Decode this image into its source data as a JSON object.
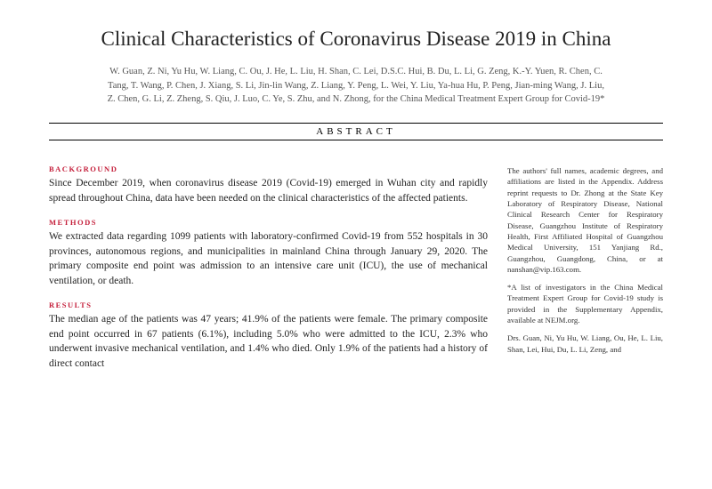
{
  "title": "Clinical Characteristics of Coronavirus Disease 2019 in China",
  "authors": "W. Guan, Z. Ni, Yu Hu, W. Liang, C. Ou, J. He, L. Liu, H. Shan, C. Lei, D.S.C. Hui, B. Du, L. Li, G. Zeng, K.-Y. Yuen, R. Chen, C. Tang, T. Wang, P. Chen, J. Xiang, S. Li, Jin-lin Wang, Z. Liang, Y. Peng, L. Wei, Y. Liu, Ya-hua Hu, P. Peng, Jian-ming Wang, J. Liu, Z. Chen, G. Li, Z. Zheng, S. Qiu, J. Luo, C. Ye, S. Zhu, and N. Zhong, for the China Medical Treatment Expert Group for Covid-19*",
  "abstract_label": "ABSTRACT",
  "sections": {
    "background": {
      "label": "BACKGROUND",
      "text": "Since December 2019, when coronavirus disease 2019 (Covid-19) emerged in Wuhan city and rapidly spread throughout China, data have been needed on the clinical characteristics of the affected patients."
    },
    "methods": {
      "label": "METHODS",
      "text": "We extracted data regarding 1099 patients with laboratory-confirmed Covid-19 from 552 hospitals in 30 provinces, autonomous regions, and municipalities in mainland China through January 29, 2020. The primary composite end point was admission to an intensive care unit (ICU), the use of mechanical ventilation, or death."
    },
    "results": {
      "label": "RESULTS",
      "text": "The median age of the patients was 47 years; 41.9% of the patients were female. The primary composite end point occurred in 67 patients (6.1%), including 5.0% who were admitted to the ICU, 2.3% who underwent invasive mechanical ventilation, and 1.4% who died. Only 1.9% of the patients had a history of direct contact"
    }
  },
  "sidebar": {
    "p1": "The authors' full names, academic degrees, and affiliations are listed in the Appendix. Address reprint requests to Dr. Zhong at the State Key Laboratory of Respiratory Disease, National Clinical Research Center for Respiratory Disease, Guangzhou Institute of Respiratory Health, First Affiliated Hospital of Guangzhou Medical University, 151 Yanjiang Rd., Guangzhou, Guangdong, China, or at nanshan@vip.163.com.",
    "p2": "*A list of investigators in the China Medical Treatment Expert Group for Covid-19 study is provided in the Supplementary Appendix, available at NEJM.org.",
    "p3": "Drs. Guan, Ni, Yu Hu, W. Liang, Ou, He, L. Liu, Shan, Lei, Hui, Du, L. Li, Zeng, and"
  },
  "colors": {
    "accent": "#c41e3a"
  }
}
